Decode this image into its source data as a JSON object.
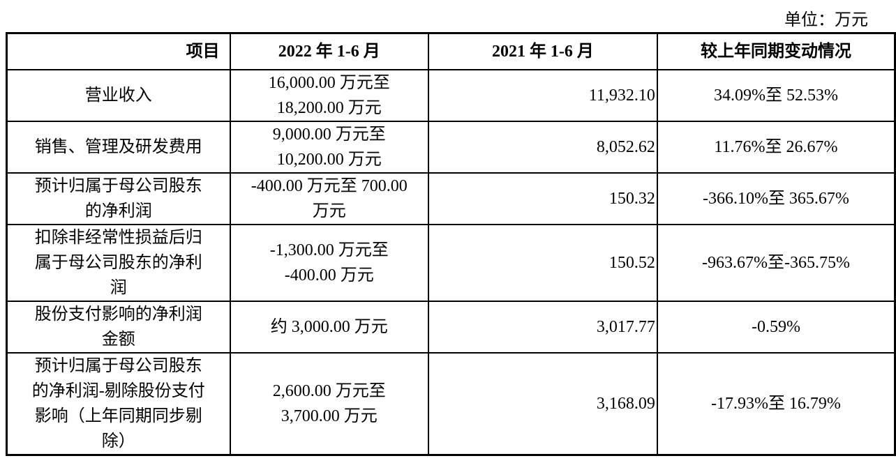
{
  "unit": "单位：万元",
  "headers": [
    "项目",
    "2022 年 1-6 月",
    "2021 年 1-6 月",
    "较上年同期变动情况"
  ],
  "rows": [
    {
      "item": [
        "营业收入"
      ],
      "y2022": [
        "16,000.00 万元至",
        "18,200.00 万元"
      ],
      "y2021": "11,932.10",
      "change": "34.09%至 52.53%"
    },
    {
      "item": [
        "销售、管理及研发费用"
      ],
      "y2022": [
        "9,000.00 万元至",
        "10,200.00 万元"
      ],
      "y2021": "8,052.62",
      "change": "11.76%至 26.67%"
    },
    {
      "item": [
        "预计归属于母公司股东",
        "的净利润"
      ],
      "y2022": [
        "-400.00 万元至 700.00",
        "万元"
      ],
      "y2021": "150.32",
      "change": "-366.10%至 365.67%"
    },
    {
      "item": [
        "扣除非经常性损益后归",
        "属于母公司股东的净利",
        "润"
      ],
      "y2022": [
        "-1,300.00 万元至",
        "-400.00 万元"
      ],
      "y2021": "150.52",
      "change": "-963.67%至-365.75%"
    },
    {
      "item": [
        "股份支付影响的净利润",
        "金额"
      ],
      "y2022": [
        "约 3,000.00 万元"
      ],
      "y2021": "3,017.77",
      "change": "-0.59%"
    },
    {
      "item": [
        "预计归属于母公司股东",
        "的净利润-剔除股份支付",
        "影响（上年同期同步剔",
        "除）"
      ],
      "y2022": [
        "2,600.00 万元至",
        "3,700.00 万元"
      ],
      "y2021": "3,168.09",
      "change": "-17.93%至 16.79%"
    }
  ]
}
